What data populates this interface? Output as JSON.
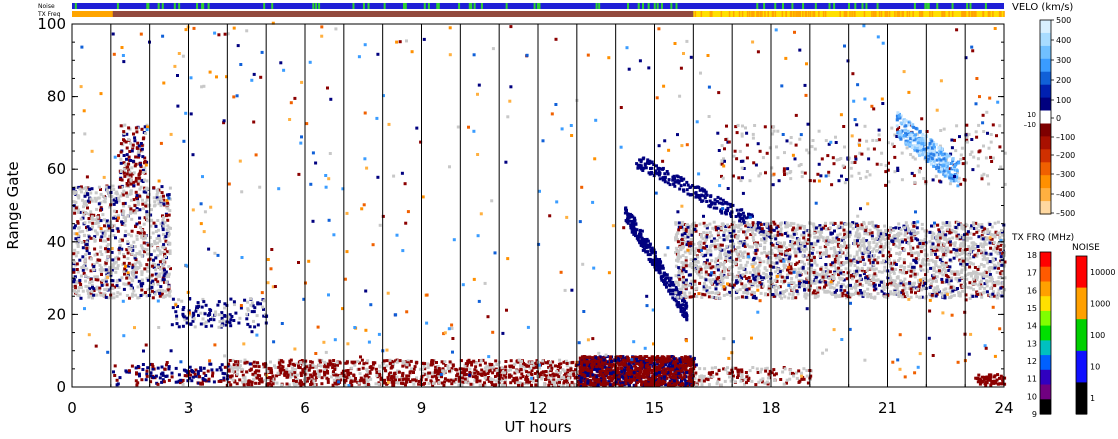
{
  "chart_data": {
    "type": "heatmap",
    "title": "",
    "xlabel": "UT hours",
    "ylabel": "Range Gate",
    "xlim": [
      0,
      24
    ],
    "ylim": [
      0,
      100
    ],
    "xticks": [
      "0",
      "3",
      "6",
      "9",
      "12",
      "15",
      "18",
      "21",
      "24"
    ],
    "xtick_values": [
      0,
      3,
      6,
      9,
      12,
      15,
      18,
      21,
      24
    ],
    "yticks": [
      "0",
      "20",
      "40",
      "60",
      "80",
      "100"
    ],
    "ytick_values": [
      0,
      20,
      40,
      60,
      80,
      100
    ],
    "hour_grid": true,
    "strips": {
      "noise_label": "Noise",
      "txfreq_label": "TX Freq",
      "noise_color": "#1f1fd6",
      "noise_alt_color": "#2fd02f",
      "txfreq_color": "#ffa500",
      "txfreq_alt_color": "#ffe000",
      "dark_span_hours": [
        1.05,
        16.0
      ]
    },
    "regions": [
      {
        "name": "ground scatter (grey)",
        "color": "#c8c8c8",
        "x": [
          0,
          2.5
        ],
        "y": [
          24,
          55
        ]
      },
      {
        "name": "early negative velocity",
        "color": "#8b0000",
        "x": [
          1,
          2.6
        ],
        "y": [
          26,
          70
        ]
      },
      {
        "name": "low gates negative velocity",
        "color": "#8b0000",
        "x": [
          4,
          24
        ],
        "y": [
          0,
          8
        ]
      },
      {
        "name": "descending positive streak",
        "color": "#00007f",
        "x": [
          14.2,
          16
        ],
        "y": [
          17,
          62
        ]
      },
      {
        "name": "afternoon ground scatter",
        "color": "#c8c8c8",
        "x": [
          15.5,
          24
        ],
        "y": [
          24,
          45
        ]
      },
      {
        "name": "high positive patch",
        "color": "#4fa8ff",
        "x": [
          21.2,
          22.8
        ],
        "y": [
          55,
          76
        ]
      }
    ],
    "velocity_colorbar": {
      "title": "VELO (km/s)",
      "ticks": [
        "500",
        "400",
        "300",
        "200",
        "100",
        "0",
        "10",
        "–10",
        "–100",
        "–200",
        "–300",
        "–400",
        "–500"
      ],
      "colors": [
        "#d8f0ff",
        "#a8dcff",
        "#70c0ff",
        "#3a9cff",
        "#1060d8",
        "#0020b0",
        "#00007f",
        "#ffffff",
        "#7f0000",
        "#a81000",
        "#d03000",
        "#f06000",
        "#ff9000",
        "#ffb040",
        "#ffd8a0"
      ]
    },
    "txfreq_colorbar": {
      "title": "TX FRQ (MHz)",
      "ticks": [
        "18",
        "17",
        "16",
        "15",
        "14",
        "13",
        "12",
        "11",
        "10",
        "9"
      ],
      "colors": [
        "#ff0000",
        "#ff5a00",
        "#ffa000",
        "#ffe000",
        "#80ff00",
        "#00e000",
        "#00c0c0",
        "#0060ff",
        "#3000c0",
        "#700080",
        "#000000"
      ]
    },
    "noise_colorbar": {
      "title": "NOISE",
      "ticks": [
        "10000",
        "1000",
        "100",
        "10",
        "1"
      ],
      "colors": [
        "#ff0000",
        "#ffa000",
        "#00d000",
        "#1010ff",
        "#000000"
      ]
    }
  }
}
